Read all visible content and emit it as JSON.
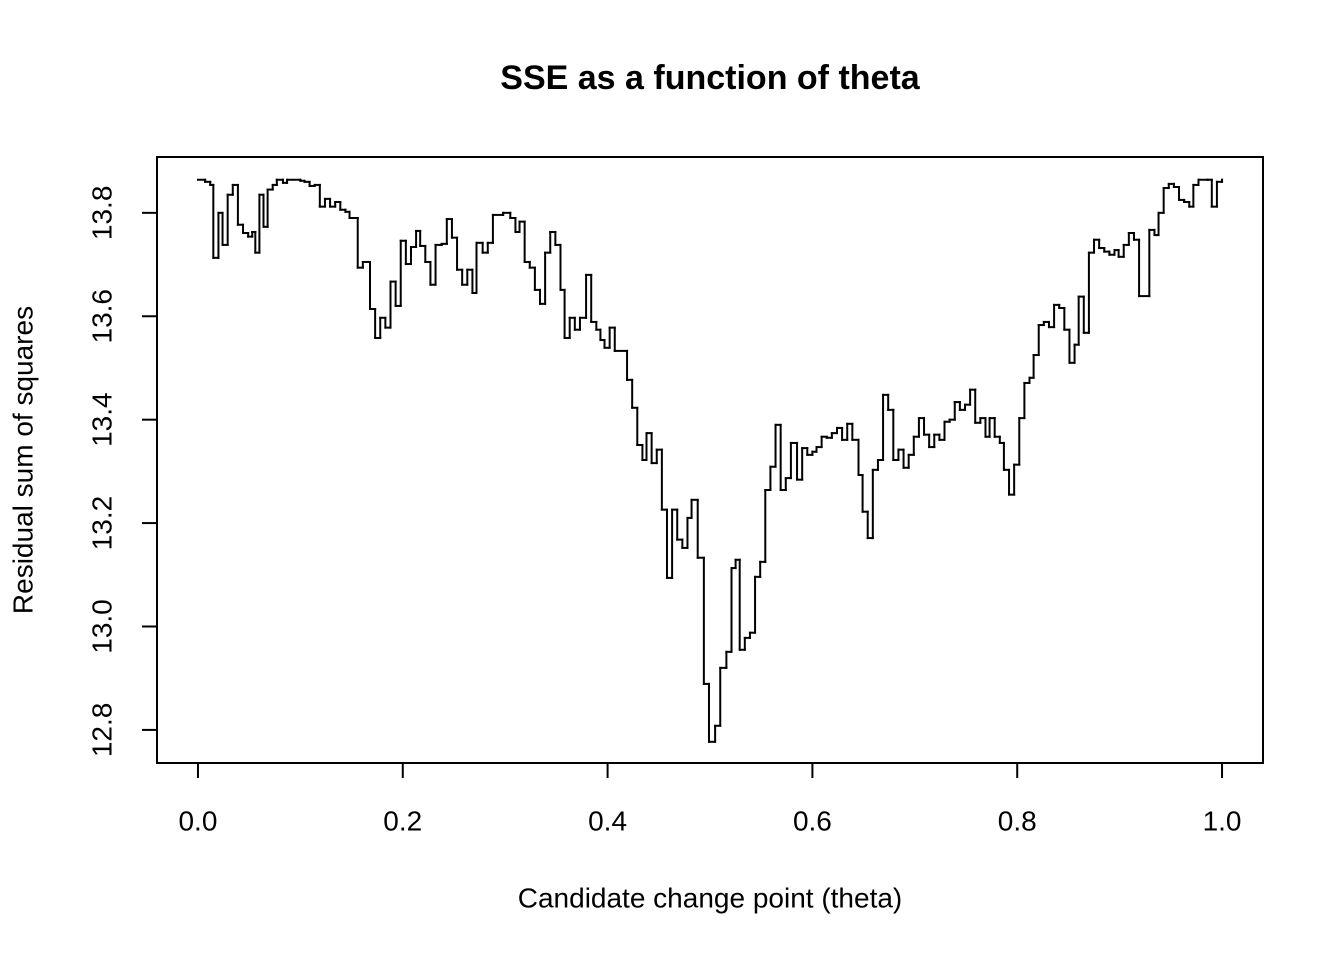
{
  "chart_data": {
    "type": "line",
    "step": "post",
    "title": "SSE as a function of theta",
    "xlabel": "Candidate change point (theta)",
    "ylabel": "Residual sum of squares",
    "color": "#000000",
    "xlim": [
      -0.04,
      1.04
    ],
    "ylim": [
      12.736,
      13.908
    ],
    "xticks": [
      {
        "value": 0,
        "label": "0.0"
      },
      0.2,
      0.4,
      0.6,
      0.8,
      {
        "value": 1,
        "label": "1.0"
      }
    ],
    "yticks": [
      12.8,
      {
        "value": 13,
        "label": "13.0"
      },
      13.2,
      13.4,
      13.6,
      13.8
    ],
    "x": [
      0,
      0.007,
      0.012,
      0.015,
      0.02,
      0.024,
      0.029,
      0.034,
      0.039,
      0.044,
      0.049,
      0.053,
      0.056,
      0.06,
      0.064,
      0.068,
      0.073,
      0.077,
      0.083,
      0.087,
      0.1,
      0.104,
      0.109,
      0.114,
      0.119,
      0.124,
      0.129,
      0.134,
      0.139,
      0.144,
      0.148,
      0.156,
      0.161,
      0.168,
      0.173,
      0.178,
      0.183,
      0.188,
      0.193,
      0.198,
      0.203,
      0.208,
      0.213,
      0.217,
      0.222,
      0.227,
      0.232,
      0.238,
      0.243,
      0.248,
      0.253,
      0.258,
      0.263,
      0.268,
      0.272,
      0.278,
      0.283,
      0.288,
      0.298,
      0.305,
      0.31,
      0.314,
      0.319,
      0.324,
      0.329,
      0.334,
      0.339,
      0.344,
      0.349,
      0.354,
      0.358,
      0.363,
      0.368,
      0.373,
      0.379,
      0.384,
      0.389,
      0.393,
      0.397,
      0.402,
      0.407,
      0.419,
      0.424,
      0.429,
      0.434,
      0.438,
      0.443,
      0.448,
      0.453,
      0.458,
      0.463,
      0.468,
      0.473,
      0.478,
      0.482,
      0.488,
      0.494,
      0.499,
      0.505,
      0.51,
      0.516,
      0.521,
      0.525,
      0.529,
      0.534,
      0.539,
      0.544,
      0.549,
      0.554,
      0.559,
      0.564,
      0.569,
      0.574,
      0.579,
      0.585,
      0.59,
      0.595,
      0.6,
      0.604,
      0.609,
      0.614,
      0.619,
      0.624,
      0.629,
      0.634,
      0.639,
      0.645,
      0.649,
      0.654,
      0.659,
      0.664,
      0.669,
      0.674,
      0.679,
      0.684,
      0.689,
      0.694,
      0.699,
      0.704,
      0.709,
      0.714,
      0.719,
      0.724,
      0.729,
      0.734,
      0.739,
      0.744,
      0.749,
      0.754,
      0.759,
      0.764,
      0.769,
      0.773,
      0.778,
      0.783,
      0.787,
      0.792,
      0.797,
      0.802,
      0.807,
      0.812,
      0.816,
      0.821,
      0.826,
      0.831,
      0.836,
      0.841,
      0.846,
      0.851,
      0.856,
      0.86,
      0.865,
      0.87,
      0.875,
      0.88,
      0.885,
      0.89,
      0.895,
      0.899,
      0.904,
      0.909,
      0.914,
      0.919,
      0.929,
      0.934,
      0.938,
      0.943,
      0.948,
      0.953,
      0.958,
      0.963,
      0.968,
      0.972,
      0.977,
      0.986,
      0.99,
      0.995,
      1
    ],
    "values": [
      13.864,
      13.86,
      13.854,
      13.713,
      13.8,
      13.738,
      13.835,
      13.854,
      13.777,
      13.761,
      13.754,
      13.763,
      13.723,
      13.835,
      13.773,
      13.845,
      13.854,
      13.864,
      13.858,
      13.864,
      13.862,
      13.86,
      13.852,
      13.854,
      13.812,
      13.827,
      13.812,
      13.821,
      13.806,
      13.802,
      13.79,
      13.694,
      13.705,
      13.614,
      13.558,
      13.597,
      13.578,
      13.667,
      13.62,
      13.746,
      13.701,
      13.734,
      13.765,
      13.736,
      13.705,
      13.661,
      13.738,
      13.74,
      13.788,
      13.752,
      13.69,
      13.661,
      13.69,
      13.645,
      13.742,
      13.723,
      13.742,
      13.796,
      13.8,
      13.79,
      13.763,
      13.783,
      13.705,
      13.694,
      13.651,
      13.624,
      13.723,
      13.763,
      13.738,
      13.651,
      13.558,
      13.597,
      13.574,
      13.597,
      13.68,
      13.589,
      13.574,
      13.554,
      13.539,
      13.578,
      13.533,
      13.477,
      13.423,
      13.351,
      13.322,
      13.374,
      13.316,
      13.342,
      13.226,
      13.094,
      13.226,
      13.168,
      13.152,
      13.21,
      13.245,
      13.133,
      12.889,
      12.777,
      12.808,
      12.92,
      12.951,
      13.113,
      13.129,
      12.955,
      12.978,
      12.988,
      13.096,
      13.125,
      13.264,
      13.309,
      13.39,
      13.264,
      13.287,
      13.355,
      13.284,
      13.345,
      13.332,
      13.338,
      13.347,
      13.367,
      13.365,
      13.374,
      13.384,
      13.361,
      13.392,
      13.361,
      13.293,
      13.222,
      13.171,
      13.303,
      13.322,
      13.448,
      13.419,
      13.322,
      13.342,
      13.307,
      13.332,
      13.367,
      13.403,
      13.371,
      13.347,
      13.371,
      13.361,
      13.396,
      13.4,
      13.434,
      13.419,
      13.429,
      13.458,
      13.394,
      13.403,
      13.367,
      13.403,
      13.367,
      13.355,
      13.303,
      13.255,
      13.313,
      13.403,
      13.471,
      13.481,
      13.525,
      13.583,
      13.589,
      13.579,
      13.622,
      13.616,
      13.574,
      13.51,
      13.545,
      13.638,
      13.568,
      13.723,
      13.748,
      13.732,
      13.725,
      13.719,
      13.728,
      13.715,
      13.738,
      13.761,
      13.748,
      13.639,
      13.767,
      13.757,
      13.8,
      13.848,
      13.856,
      13.85,
      13.825,
      13.821,
      13.812,
      13.854,
      13.864,
      13.864,
      13.812,
      13.86,
      13.864
    ]
  }
}
